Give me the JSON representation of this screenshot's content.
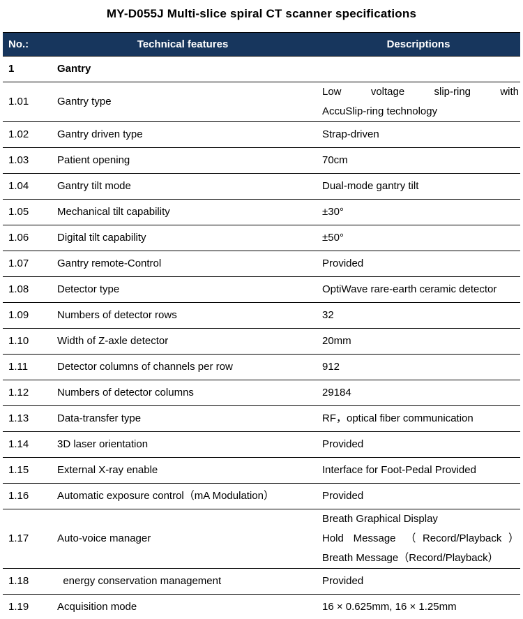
{
  "title": "MY-D055J Multi-slice spiral CT scanner specifications",
  "colors": {
    "header_bg": "#17365D",
    "header_text": "#FFFFFF",
    "row_border": "#000000"
  },
  "table": {
    "headers": [
      "No.:",
      "Technical features",
      "Descriptions"
    ],
    "rows": [
      {
        "no": "1",
        "feature": "Gantry",
        "section": true,
        "desc": []
      },
      {
        "no": "1.01",
        "feature": "Gantry type",
        "desc": [
          {
            "text": "Low voltage slip-ring with",
            "justify": true
          },
          {
            "text": "AccuSlip-ring technology"
          }
        ]
      },
      {
        "no": "1.02",
        "feature": "Gantry driven type",
        "desc": [
          {
            "text": "Strap-driven"
          }
        ]
      },
      {
        "no": "1.03",
        "feature": "Patient opening",
        "desc": [
          {
            "text": "70cm"
          }
        ]
      },
      {
        "no": "1.04",
        "feature": "Gantry tilt mode",
        "desc": [
          {
            "text": "Dual-mode gantry tilt"
          }
        ]
      },
      {
        "no": "1.05",
        "feature": "Mechanical tilt capability",
        "desc": [
          {
            "text": "±30°"
          }
        ]
      },
      {
        "no": "1.06",
        "feature": "Digital tilt capability",
        "desc": [
          {
            "text": "±50°"
          }
        ]
      },
      {
        "no": "1.07",
        "feature": "Gantry remote-Control",
        "desc": [
          {
            "text": "Provided"
          }
        ]
      },
      {
        "no": "1.08",
        "feature": "Detector type",
        "desc": [
          {
            "text": "OptiWave rare-earth ceramic detector"
          }
        ]
      },
      {
        "no": "1.09",
        "feature": "Numbers of detector rows",
        "desc": [
          {
            "text": "32"
          }
        ]
      },
      {
        "no": "1.10",
        "feature": "Width of Z-axle detector",
        "desc": [
          {
            "text": "20mm"
          }
        ]
      },
      {
        "no": "1.11",
        "feature": "Detector columns of channels per row",
        "desc": [
          {
            "text": "912"
          }
        ]
      },
      {
        "no": "1.12",
        "feature": "Numbers of detector columns",
        "desc": [
          {
            "text": "29184"
          }
        ]
      },
      {
        "no": "1.13",
        "feature": "Data-transfer type",
        "desc": [
          {
            "text": "RF，optical fiber communication"
          }
        ]
      },
      {
        "no": "1.14",
        "feature": "3D laser orientation",
        "desc": [
          {
            "text": "Provided"
          }
        ]
      },
      {
        "no": "1.15",
        "feature": "External X-ray enable",
        "desc": [
          {
            "text": "Interface for Foot-Pedal Provided"
          }
        ]
      },
      {
        "no": "1.16",
        "feature": "Automatic exposure control（mA Modulation）",
        "desc": [
          {
            "text": "Provided"
          }
        ]
      },
      {
        "no": "1.17",
        "feature": "Auto-voice manager",
        "desc": [
          {
            "text": "Breath Graphical Display"
          },
          {
            "text": "Hold Message （Record/Playback）",
            "justify": true
          },
          {
            "text": "Breath Message（Record/Playback）"
          }
        ]
      },
      {
        "no": "1.18",
        "feature": "  energy conservation management",
        "desc": [
          {
            "text": "Provided"
          }
        ]
      },
      {
        "no": "1.19",
        "feature": "Acquisition mode",
        "desc": [
          {
            "text": "16 × 0.625mm, 16 × 1.25mm"
          }
        ]
      }
    ]
  }
}
